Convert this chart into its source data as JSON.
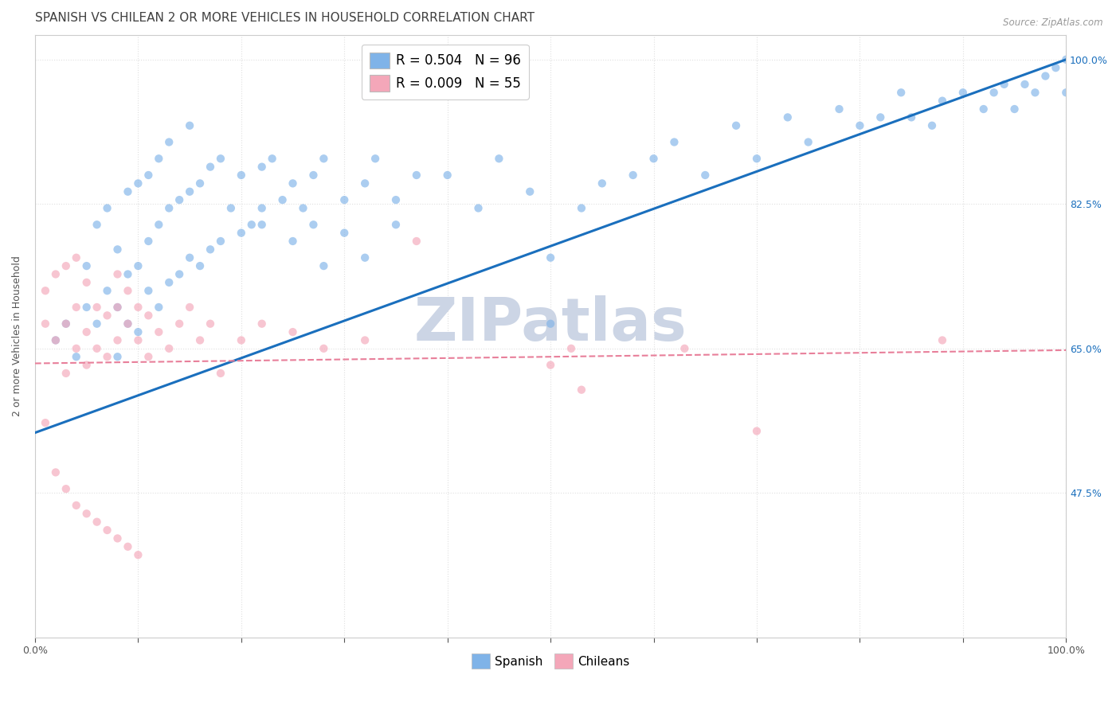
{
  "title": "SPANISH VS CHILEAN 2 OR MORE VEHICLES IN HOUSEHOLD CORRELATION CHART",
  "source_text": "Source: ZipAtlas.com",
  "ylabel": "2 or more Vehicles in Household",
  "xlim": [
    0.0,
    1.0
  ],
  "ylim": [
    0.3,
    1.03
  ],
  "ytick_values": [
    0.475,
    0.65,
    0.825,
    1.0
  ],
  "ytick_labels": [
    "47.5%",
    "65.0%",
    "82.5%",
    "100.0%"
  ],
  "xtick_values": [
    0.0,
    0.1,
    0.2,
    0.3,
    0.4,
    0.5,
    0.6,
    0.7,
    0.8,
    0.9,
    1.0
  ],
  "xtick_labels": [
    "0.0%",
    "",
    "",
    "",
    "",
    "",
    "",
    "",
    "",
    "",
    "100.0%"
  ],
  "background_color": "#ffffff",
  "watermark_text": "ZIPatlas",
  "legend_r_spanish": "R = 0.504",
  "legend_n_spanish": "N = 96",
  "legend_r_chilean": "R = 0.009",
  "legend_n_chilean": "N = 55",
  "spanish_color": "#7fb3e8",
  "chilean_color": "#f4a7b9",
  "spanish_line_color": "#1a6fbd",
  "chilean_line_color": "#e87f9a",
  "spanish_line_x": [
    0.0,
    1.0
  ],
  "spanish_line_y": [
    0.548,
    1.0
  ],
  "chilean_line_x": [
    0.0,
    1.0
  ],
  "chilean_line_y": [
    0.632,
    0.648
  ],
  "spanish_scatter_x": [
    0.02,
    0.03,
    0.04,
    0.05,
    0.05,
    0.06,
    0.06,
    0.07,
    0.07,
    0.08,
    0.08,
    0.09,
    0.09,
    0.1,
    0.1,
    0.11,
    0.11,
    0.12,
    0.12,
    0.13,
    0.13,
    0.14,
    0.15,
    0.15,
    0.16,
    0.17,
    0.18,
    0.19,
    0.2,
    0.22,
    0.22,
    0.23,
    0.25,
    0.26,
    0.27,
    0.28,
    0.3,
    0.32,
    0.33,
    0.35,
    0.37,
    0.4,
    0.43,
    0.45,
    0.48,
    0.5,
    0.5,
    0.53,
    0.55,
    0.58,
    0.6,
    0.62,
    0.65,
    0.68,
    0.7,
    0.73,
    0.75,
    0.78,
    0.8,
    0.82,
    0.84,
    0.85,
    0.87,
    0.88,
    0.9,
    0.92,
    0.93,
    0.94,
    0.95,
    0.96,
    0.97,
    0.98,
    0.99,
    1.0,
    1.0,
    0.08,
    0.09,
    0.1,
    0.11,
    0.12,
    0.13,
    0.14,
    0.15,
    0.16,
    0.17,
    0.18,
    0.2,
    0.21,
    0.22,
    0.24,
    0.25,
    0.27,
    0.28,
    0.3,
    0.32,
    0.35
  ],
  "spanish_scatter_y": [
    0.66,
    0.68,
    0.64,
    0.7,
    0.75,
    0.68,
    0.8,
    0.72,
    0.82,
    0.7,
    0.77,
    0.74,
    0.84,
    0.75,
    0.85,
    0.78,
    0.86,
    0.8,
    0.88,
    0.82,
    0.9,
    0.83,
    0.84,
    0.92,
    0.85,
    0.87,
    0.88,
    0.82,
    0.86,
    0.87,
    0.8,
    0.88,
    0.85,
    0.82,
    0.86,
    0.88,
    0.83,
    0.85,
    0.88,
    0.83,
    0.86,
    0.86,
    0.82,
    0.88,
    0.84,
    0.76,
    0.68,
    0.82,
    0.85,
    0.86,
    0.88,
    0.9,
    0.86,
    0.92,
    0.88,
    0.93,
    0.9,
    0.94,
    0.92,
    0.93,
    0.96,
    0.93,
    0.92,
    0.95,
    0.96,
    0.94,
    0.96,
    0.97,
    0.94,
    0.97,
    0.96,
    0.98,
    0.99,
    1.0,
    0.96,
    0.64,
    0.68,
    0.67,
    0.72,
    0.7,
    0.73,
    0.74,
    0.76,
    0.75,
    0.77,
    0.78,
    0.79,
    0.8,
    0.82,
    0.83,
    0.78,
    0.8,
    0.75,
    0.79,
    0.76,
    0.8
  ],
  "chilean_scatter_x": [
    0.01,
    0.01,
    0.02,
    0.02,
    0.03,
    0.03,
    0.03,
    0.04,
    0.04,
    0.04,
    0.05,
    0.05,
    0.05,
    0.06,
    0.06,
    0.07,
    0.07,
    0.08,
    0.08,
    0.08,
    0.09,
    0.09,
    0.1,
    0.1,
    0.11,
    0.11,
    0.12,
    0.13,
    0.14,
    0.15,
    0.16,
    0.17,
    0.18,
    0.2,
    0.22,
    0.25,
    0.28,
    0.32,
    0.37,
    0.5,
    0.52,
    0.53,
    0.63,
    0.7,
    0.88,
    0.01,
    0.02,
    0.03,
    0.04,
    0.05,
    0.06,
    0.07,
    0.08,
    0.09,
    0.1
  ],
  "chilean_scatter_y": [
    0.68,
    0.72,
    0.66,
    0.74,
    0.62,
    0.68,
    0.75,
    0.65,
    0.7,
    0.76,
    0.63,
    0.67,
    0.73,
    0.65,
    0.7,
    0.64,
    0.69,
    0.66,
    0.7,
    0.74,
    0.68,
    0.72,
    0.66,
    0.7,
    0.64,
    0.69,
    0.67,
    0.65,
    0.68,
    0.7,
    0.66,
    0.68,
    0.62,
    0.66,
    0.68,
    0.67,
    0.65,
    0.66,
    0.78,
    0.63,
    0.65,
    0.6,
    0.65,
    0.55,
    0.66,
    0.56,
    0.5,
    0.48,
    0.46,
    0.45,
    0.44,
    0.43,
    0.42,
    0.41,
    0.4
  ],
  "title_fontsize": 11,
  "axis_fontsize": 9,
  "tick_fontsize": 9,
  "title_color": "#404040",
  "axis_label_color": "#555555",
  "tick_color": "#555555",
  "right_tick_color": "#1a6fbd",
  "grid_color": "#e0e0e0",
  "watermark_color": "#ccd5e5",
  "watermark_fontsize": 54,
  "scatter_size": 55,
  "scatter_alpha": 0.65
}
